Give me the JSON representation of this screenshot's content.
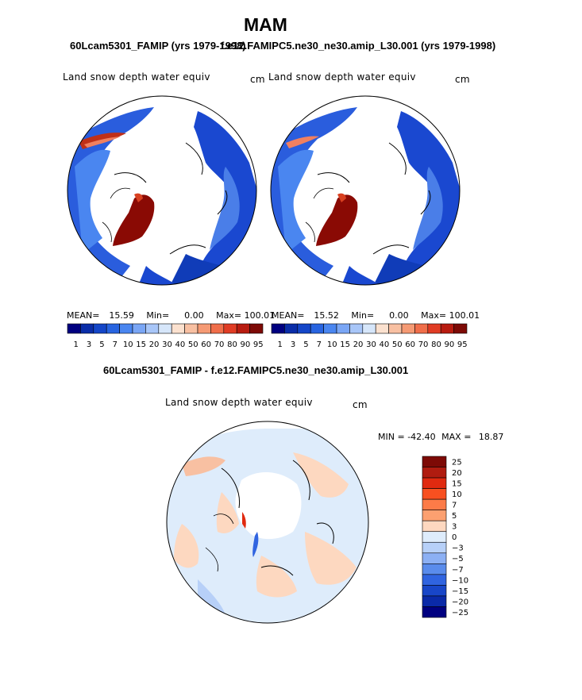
{
  "title": "MAM",
  "panel1": {
    "subtitle": "60Lcam5301_FAMIP (yrs 1979-1998)",
    "field_label": "Land snow depth water equiv",
    "units": "cm",
    "stats": {
      "mean_label": "MEAN=",
      "mean": "15.59",
      "min_label": "Min=",
      "min": "0.00",
      "max_label": "Max=",
      "max": "100.01"
    }
  },
  "panel2": {
    "subtitle": "f.e12.FAMIPC5.ne30_ne30.amip_L30.001 (yrs 1979-1998)",
    "field_label": "Land snow depth water equiv",
    "units": "cm",
    "stats": {
      "mean_label": "MEAN=",
      "mean": "15.52",
      "min_label": "Min=",
      "min": "0.00",
      "max_label": "Max=",
      "max": "100.01"
    }
  },
  "diff_panel": {
    "subtitle": "60Lcam5301_FAMIP - f.e12.FAMIPC5.ne30_ne30.amip_L30.001",
    "field_label": "Land snow depth water equiv",
    "units": "cm",
    "minmax": {
      "min_label": "MIN =",
      "min": "-42.40",
      "max_label": "MAX =",
      "max": "18.87"
    }
  },
  "colorbar_abs": {
    "colors": [
      "#000080",
      "#0a2da8",
      "#1446c8",
      "#2864e0",
      "#4a86f0",
      "#7aa6f5",
      "#a8c6f8",
      "#d6e6fa",
      "#fbe1cf",
      "#f8c0a2",
      "#f59a74",
      "#f06e4a",
      "#e03c24",
      "#b81c10",
      "#7d0a06"
    ],
    "labels": [
      "1",
      "3",
      "5",
      "7",
      "10",
      "15",
      "20",
      "30",
      "40",
      "50",
      "60",
      "70",
      "80",
      "90",
      "95"
    ]
  },
  "colorbar_diff": {
    "colors": [
      "#7d0a06",
      "#b01c10",
      "#e02a10",
      "#f85020",
      "#fc7b48",
      "#fca070",
      "#fdd8c0",
      "#deecfb",
      "#b7d0f8",
      "#8cb0f4",
      "#5a8cec",
      "#3064e0",
      "#1846c8",
      "#0a2aa8",
      "#000080"
    ],
    "labels": [
      "25",
      "20",
      "15",
      "10",
      "7",
      "5",
      "3",
      "0",
      "−3",
      "−5",
      "−7",
      "−10",
      "−15",
      "−20",
      "−25"
    ]
  }
}
